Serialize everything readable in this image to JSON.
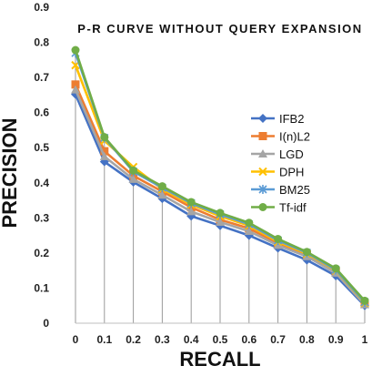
{
  "chart_data": {
    "type": "line",
    "title": "P-R CURVE WITHOUT QUERY EXPANSION",
    "xlabel": "RECALL",
    "ylabel": "PRECISION",
    "x": [
      0,
      0.1,
      0.2,
      0.3,
      0.4,
      0.5,
      0.6,
      0.7,
      0.8,
      0.9,
      1
    ],
    "x_tick_labels": [
      "0",
      "0.1",
      "0.2",
      "0.3",
      "0.4",
      "0.5",
      "0.6",
      "0.7",
      "0.8",
      "0.9",
      "1"
    ],
    "ylim": [
      0,
      0.9
    ],
    "y_ticks": [
      0,
      0.1,
      0.2,
      0.3,
      0.4,
      0.5,
      0.6,
      0.7,
      0.8,
      0.9
    ],
    "y_tick_labels": [
      "0",
      "0.1",
      "0.2",
      "0.3",
      "0.4",
      "0.5",
      "0.6",
      "0.7",
      "0.8",
      "0.9"
    ],
    "grid": "vertical drop lines at each recall point",
    "legend_position": "right",
    "series": [
      {
        "name": "IFB2",
        "color": "#4472C4",
        "marker": "diamond",
        "values": [
          0.652,
          0.46,
          0.402,
          0.355,
          0.305,
          0.278,
          0.25,
          0.214,
          0.18,
          0.135,
          0.05
        ]
      },
      {
        "name": "I(n)L2",
        "color": "#ED7D31",
        "marker": "square",
        "values": [
          0.68,
          0.49,
          0.42,
          0.375,
          0.33,
          0.295,
          0.27,
          0.228,
          0.196,
          0.148,
          0.055
        ]
      },
      {
        "name": "LGD",
        "color": "#A5A5A5",
        "marker": "triangle",
        "values": [
          0.665,
          0.475,
          0.41,
          0.365,
          0.318,
          0.288,
          0.262,
          0.222,
          0.19,
          0.143,
          0.053
        ]
      },
      {
        "name": "DPH",
        "color": "#FFC000",
        "marker": "x",
        "values": [
          0.735,
          0.52,
          0.445,
          0.382,
          0.338,
          0.305,
          0.278,
          0.232,
          0.198,
          0.15,
          0.058
        ]
      },
      {
        "name": "BM25",
        "color": "#5B9BD5",
        "marker": "star",
        "values": [
          0.77,
          0.528,
          0.432,
          0.386,
          0.342,
          0.31,
          0.282,
          0.236,
          0.201,
          0.152,
          0.06
        ]
      },
      {
        "name": "Tf-idf",
        "color": "#70AD47",
        "marker": "circle",
        "values": [
          0.778,
          0.53,
          0.435,
          0.39,
          0.345,
          0.314,
          0.286,
          0.24,
          0.203,
          0.156,
          0.064
        ]
      }
    ]
  }
}
